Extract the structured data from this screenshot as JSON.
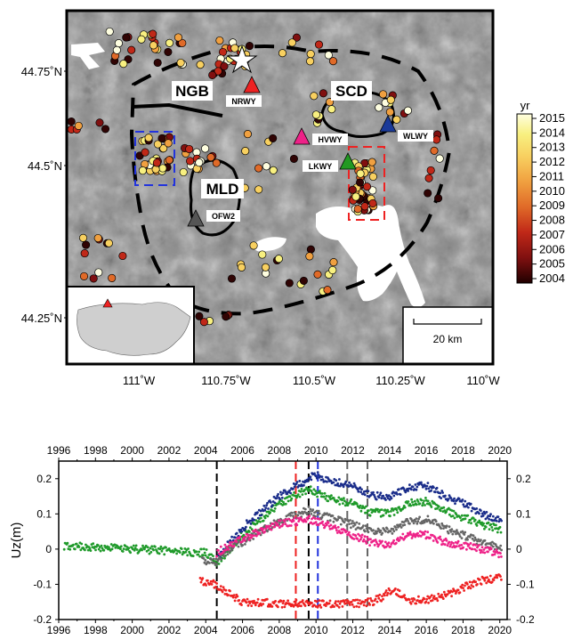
{
  "map": {
    "lat_labels": [
      "44.75˚N",
      "44.5˚N",
      "44.25˚N"
    ],
    "lon_labels": [
      "111˚W",
      "110.75˚W",
      "110.5˚W",
      "110.25˚W",
      "110˚W"
    ],
    "regions": [
      {
        "name": "NGB"
      },
      {
        "name": "SCD"
      },
      {
        "name": "MLD"
      }
    ],
    "stations": [
      {
        "name": "NRWY",
        "color": "#ee2222"
      },
      {
        "name": "HVWY",
        "color": "#ee2288"
      },
      {
        "name": "WLWY",
        "color": "#1a3a99"
      },
      {
        "name": "LKWY",
        "color": "#229922"
      },
      {
        "name": "OFW2",
        "color": "#555555"
      }
    ],
    "scale_bar_label": "20 km",
    "colorbar": {
      "title": "yr",
      "labels": [
        "2015",
        "2014",
        "2013",
        "2012",
        "2011",
        "2010",
        "2009",
        "2008",
        "2007",
        "2006",
        "2005",
        "2004"
      ]
    }
  },
  "chart_data": {
    "type": "scatter",
    "xlim": [
      1996,
      2020.4
    ],
    "ylim": [
      -0.2,
      0.25
    ],
    "x_ticks": [
      "1996",
      "1998",
      "2000",
      "2002",
      "2004",
      "2006",
      "2008",
      "2010",
      "2012",
      "2014",
      "2016",
      "2018",
      "2020"
    ],
    "y_ticks_left": [
      "0.2",
      "0.1",
      "0",
      "-0.1",
      "-0.2"
    ],
    "y_ticks_right": [
      "0.2",
      "0.1",
      "0",
      "-0.1",
      "-0.2"
    ],
    "ylabel": "Uz(m)",
    "grid": false,
    "vertical_lines": [
      {
        "x": 2004.6,
        "color": "#000000",
        "style": "dashed"
      },
      {
        "x": 2008.9,
        "color": "#ee2222",
        "style": "dashed"
      },
      {
        "x": 2009.6,
        "color": "#000000",
        "style": "dashed"
      },
      {
        "x": 2010.1,
        "color": "#2233dd",
        "style": "dashed"
      },
      {
        "x": 2011.7,
        "color": "#666666",
        "style": "dashed"
      },
      {
        "x": 2012.8,
        "color": "#666666",
        "style": "dashed"
      }
    ],
    "series": [
      {
        "color": "#1a2d8a",
        "start": 2004.7,
        "end": 2020.1,
        "x": [
          2004.7,
          2006,
          2008,
          2009.6,
          2010,
          2011,
          2012,
          2013,
          2014,
          2015,
          2016,
          2017,
          2018,
          2019,
          2020.1
        ],
        "y": [
          -0.02,
          0.06,
          0.15,
          0.2,
          0.21,
          0.19,
          0.18,
          0.15,
          0.15,
          0.175,
          0.18,
          0.15,
          0.13,
          0.1,
          0.08
        ]
      },
      {
        "color": "#1f9a2a",
        "start": 1996.3,
        "end": 2020.1,
        "x": [
          1996.3,
          1998,
          2000,
          2002,
          2003,
          2004,
          2004.6,
          2006,
          2008,
          2009.6,
          2010,
          2011,
          2012,
          2013,
          2014,
          2015,
          2016,
          2017,
          2018,
          2019,
          2020.1
        ],
        "y": [
          0.01,
          0.005,
          0.0,
          -0.005,
          -0.01,
          -0.01,
          -0.04,
          0.04,
          0.13,
          0.17,
          0.16,
          0.14,
          0.13,
          0.105,
          0.1,
          0.13,
          0.135,
          0.11,
          0.09,
          0.07,
          0.055
        ]
      },
      {
        "color": "#666666",
        "start": 2003.8,
        "end": 2020.1,
        "x": [
          2003.8,
          2004.5,
          2005,
          2006,
          2008,
          2009.6,
          2010,
          2011,
          2012,
          2013,
          2014,
          2015,
          2016,
          2017,
          2018,
          2019,
          2020.1
        ],
        "y": [
          -0.03,
          -0.04,
          -0.01,
          0.02,
          0.08,
          0.11,
          0.1,
          0.085,
          0.07,
          0.05,
          0.05,
          0.08,
          0.085,
          0.06,
          0.04,
          0.02,
          0.0
        ]
      },
      {
        "color": "#ee2288",
        "start": 2004.6,
        "end": 2020.1,
        "x": [
          2004.6,
          2006,
          2008,
          2009.6,
          2010,
          2011,
          2012,
          2013,
          2014,
          2015,
          2016,
          2017,
          2018,
          2019,
          2020.1
        ],
        "y": [
          -0.01,
          0.03,
          0.07,
          0.085,
          0.08,
          0.06,
          0.04,
          0.02,
          0.01,
          0.04,
          0.04,
          0.02,
          0.01,
          0.0,
          -0.015
        ]
      },
      {
        "color": "#ee2222",
        "start": 2003.7,
        "end": 2020.1,
        "x": [
          2003.7,
          2004.6,
          2005,
          2006,
          2008,
          2010,
          2012,
          2013,
          2013.5,
          2014.2,
          2015,
          2016,
          2017,
          2018,
          2019,
          2020.1
        ],
        "y": [
          -0.09,
          -0.1,
          -0.12,
          -0.15,
          -0.155,
          -0.155,
          -0.155,
          -0.15,
          -0.14,
          -0.11,
          -0.145,
          -0.145,
          -0.13,
          -0.11,
          -0.09,
          -0.08
        ]
      }
    ]
  }
}
